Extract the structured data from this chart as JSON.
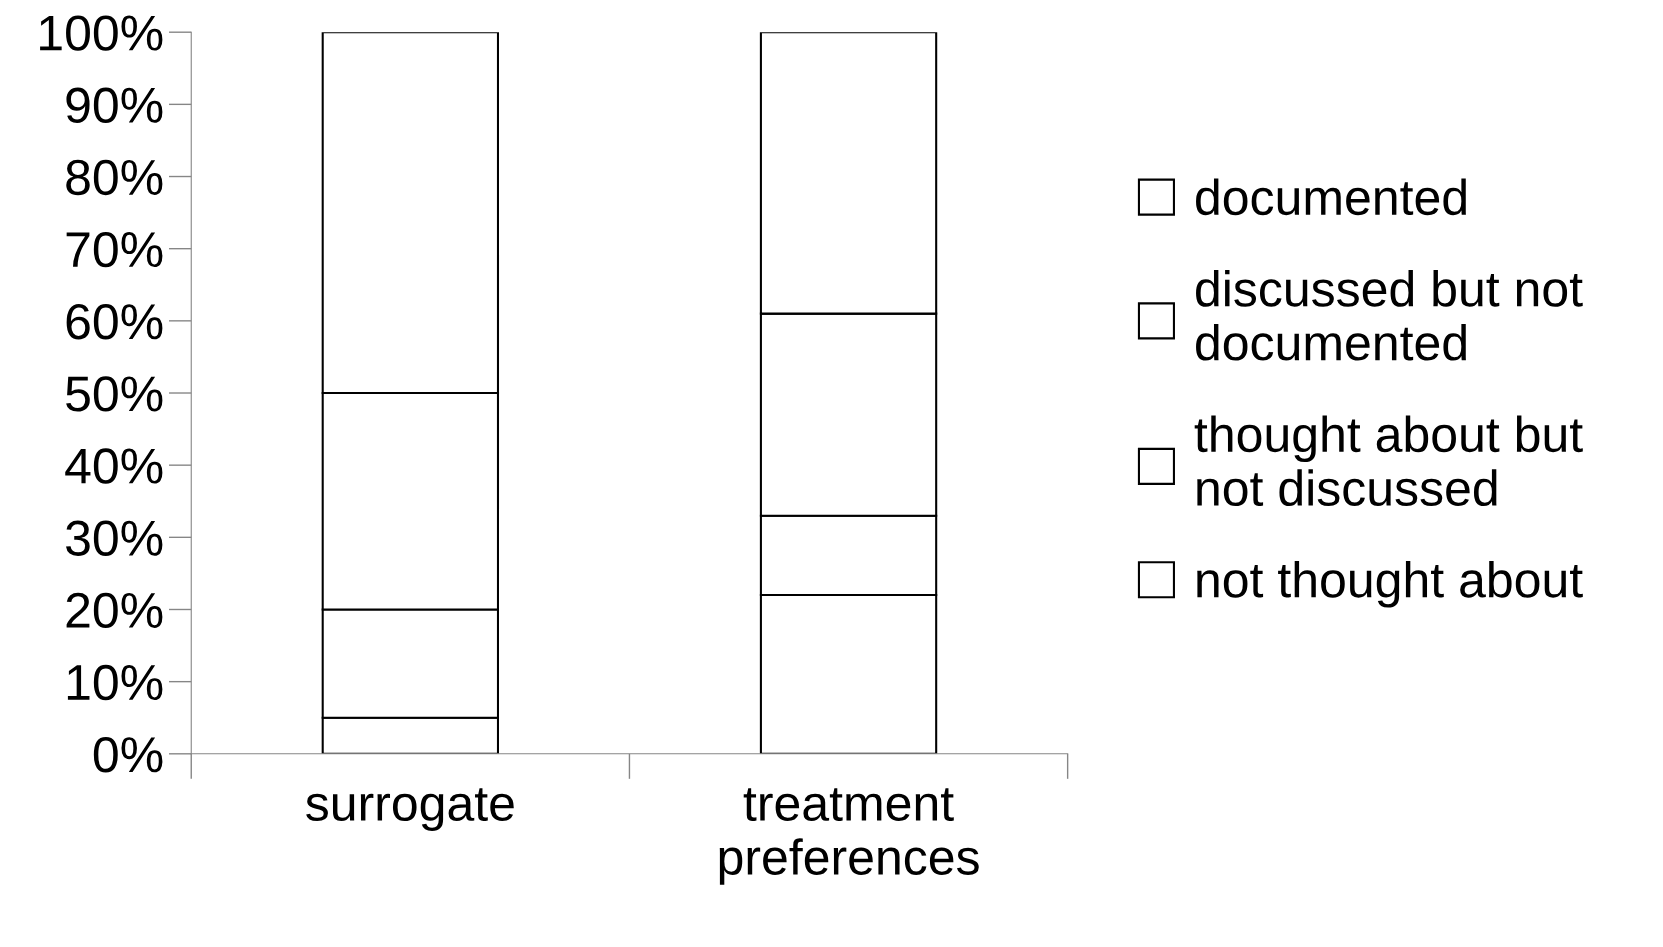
{
  "chart_data": {
    "type": "bar",
    "stacked": true,
    "categories": [
      "surrogate",
      "treatment\npreferences"
    ],
    "series": [
      {
        "name": "not thought about",
        "color": "#ffffff",
        "values": [
          5,
          22
        ]
      },
      {
        "name": "thought about but\nnot discussed",
        "color": "#ffffff",
        "values": [
          15,
          11
        ]
      },
      {
        "name": "discussed but not\ndocumented",
        "color": "#ffffff",
        "values": [
          30,
          28
        ]
      },
      {
        "name": "documented",
        "color": "#ffffff",
        "values": [
          50,
          39
        ]
      }
    ],
    "ylim": [
      0,
      100
    ],
    "yticks": [
      {
        "value": 0,
        "label": "0%"
      },
      {
        "value": 10,
        "label": "10%"
      },
      {
        "value": 20,
        "label": "20%"
      },
      {
        "value": 30,
        "label": "30%"
      },
      {
        "value": 40,
        "label": "40%"
      },
      {
        "value": 50,
        "label": "50%"
      },
      {
        "value": 60,
        "label": "60%"
      },
      {
        "value": 70,
        "label": "70%"
      },
      {
        "value": 80,
        "label": "80%"
      },
      {
        "value": 90,
        "label": "90%"
      },
      {
        "value": 100,
        "label": "100%"
      }
    ],
    "grid": false,
    "legend": "right"
  }
}
